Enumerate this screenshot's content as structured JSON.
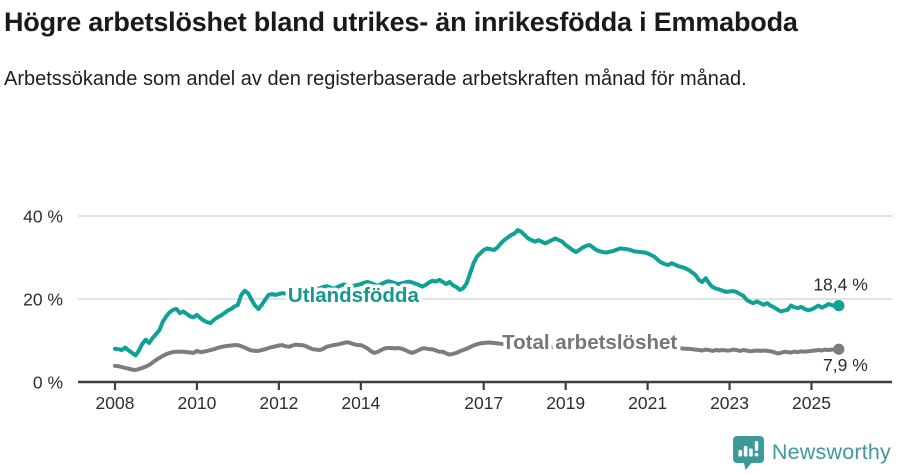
{
  "header": {
    "title": "Högre arbetslöshet bland utrikes- än inrikesfödda i Emmaboda",
    "subtitle": "Arbetssökande som andel av den registerbaserade arbetskraften månad för månad."
  },
  "chart_data": {
    "type": "line",
    "title": "Högre arbetslöshet bland utrikes- än inrikesfödda i Emmaboda",
    "subtitle": "Arbetssökande som andel av den registerbaserade arbetskraften månad för månad.",
    "x_unit": "year-month",
    "x_start_year": 2008,
    "x_points_per_year": 12,
    "x_end": "2025-09",
    "x_tick_labels": [
      "2008",
      "2010",
      "2012",
      "2014",
      "2017",
      "2019",
      "2021",
      "2023",
      "2025"
    ],
    "x_tick_years": [
      2008,
      2010,
      2012,
      2014,
      2017,
      2019,
      2021,
      2023,
      2025
    ],
    "y_ticks": [
      {
        "value": 0,
        "label": "0 %"
      },
      {
        "value": 20,
        "label": "20 %"
      },
      {
        "value": 40,
        "label": "40 %"
      }
    ],
    "ylim": [
      0,
      43
    ],
    "grid": true,
    "legend_position": "inline-labels",
    "colors": {
      "grid": "#d9d9d9",
      "axis": "#3f3f3f",
      "tick_text": "#2e2e2e",
      "value_text": "#2b2b2b"
    },
    "series": [
      {
        "name": "Utlandsfödda",
        "color": "#0fa194",
        "label_color": "#14988f",
        "end_value_label": "18,4 %",
        "end_value": 18.4,
        "label_anchor": {
          "year": 2012.22,
          "value": 19.3
        },
        "values": [
          8.0,
          7.9,
          7.7,
          8.3,
          7.6,
          7.0,
          6.4,
          7.6,
          9.2,
          10.2,
          9.4,
          10.6,
          11.5,
          12.5,
          14.5,
          15.8,
          16.8,
          17.4,
          17.6,
          16.6,
          17.0,
          16.4,
          15.8,
          15.6,
          16.2,
          15.4,
          14.8,
          14.4,
          14.2,
          15.0,
          15.6,
          16.0,
          16.6,
          17.2,
          17.6,
          18.2,
          18.6,
          21.0,
          22.0,
          21.4,
          19.8,
          18.4,
          17.6,
          18.6,
          19.8,
          21.0,
          21.2,
          21.0,
          21.2,
          21.4,
          21.3,
          21.5,
          21.6,
          21.8,
          22.0,
          22.3,
          22.1,
          21.9,
          22.2,
          22.4,
          22.6,
          22.9,
          23.1,
          22.8,
          22.5,
          22.8,
          23.2,
          23.5,
          23.3,
          23.0,
          23.2,
          23.4,
          23.6,
          23.9,
          24.1,
          23.8,
          23.5,
          23.2,
          23.6,
          24.0,
          24.3,
          24.1,
          23.8,
          23.6,
          23.8,
          24.0,
          24.2,
          24.0,
          23.7,
          23.4,
          23.0,
          23.4,
          24.0,
          24.4,
          24.2,
          24.6,
          24.1,
          23.6,
          24.1,
          23.3,
          22.9,
          22.2,
          22.6,
          23.8,
          26.2,
          28.6,
          30.2,
          31.0,
          31.8,
          32.2,
          32.0,
          31.8,
          32.4,
          33.4,
          34.2,
          34.8,
          35.4,
          35.8,
          36.6,
          36.2,
          35.4,
          34.6,
          34.2,
          33.8,
          34.2,
          33.8,
          33.4,
          33.8,
          34.2,
          34.6,
          34.2,
          33.8,
          33.0,
          32.4,
          31.8,
          31.3,
          31.8,
          32.4,
          32.8,
          33.0,
          32.4,
          31.8,
          31.5,
          31.3,
          31.2,
          31.4,
          31.6,
          31.9,
          32.2,
          32.1,
          32.0,
          31.8,
          31.5,
          31.4,
          31.3,
          31.2,
          31.0,
          30.6,
          30.2,
          29.4,
          28.8,
          28.4,
          28.2,
          28.6,
          28.3,
          27.9,
          27.7,
          27.4,
          27.0,
          26.4,
          25.8,
          24.6,
          24.1,
          25.0,
          23.8,
          22.9,
          22.5,
          22.3,
          22.0,
          21.7,
          21.8,
          21.9,
          21.7,
          21.2,
          20.8,
          19.8,
          19.3,
          19.0,
          19.4,
          19.0,
          18.6,
          19.0,
          18.4,
          18.0,
          17.5,
          17.0,
          17.2,
          17.4,
          18.4,
          18.0,
          17.8,
          18.1,
          17.6,
          17.3,
          17.5,
          17.9,
          18.4,
          17.9,
          18.3,
          18.8,
          18.5,
          18.3,
          18.4
        ]
      },
      {
        "name": "Total arbetslöshet",
        "color": "#7d7d81",
        "label_color": "#76767b",
        "end_value_label": "7,9 %",
        "end_value": 7.9,
        "label_anchor": {
          "year": 2017.45,
          "value": 8.0
        },
        "values": [
          3.9,
          3.8,
          3.6,
          3.4,
          3.2,
          3.0,
          2.9,
          3.1,
          3.4,
          3.7,
          4.1,
          4.7,
          5.3,
          5.8,
          6.3,
          6.7,
          7.0,
          7.2,
          7.3,
          7.3,
          7.3,
          7.2,
          7.1,
          7.0,
          7.5,
          7.2,
          7.3,
          7.5,
          7.7,
          7.9,
          8.2,
          8.4,
          8.6,
          8.7,
          8.8,
          8.9,
          8.9,
          8.6,
          8.3,
          7.9,
          7.6,
          7.5,
          7.5,
          7.7,
          7.9,
          8.2,
          8.4,
          8.6,
          8.8,
          8.9,
          8.6,
          8.5,
          8.8,
          9.0,
          8.9,
          8.9,
          8.6,
          8.2,
          7.9,
          7.8,
          7.7,
          8.0,
          8.5,
          8.7,
          8.9,
          9.0,
          9.2,
          9.4,
          9.6,
          9.4,
          9.1,
          8.9,
          8.9,
          8.5,
          8.1,
          7.4,
          7.0,
          7.3,
          7.7,
          8.1,
          8.2,
          8.2,
          8.1,
          8.2,
          8.0,
          7.7,
          7.3,
          7.0,
          7.3,
          7.7,
          8.1,
          8.1,
          7.9,
          7.9,
          7.6,
          7.3,
          7.3,
          6.9,
          6.6,
          6.8,
          7.0,
          7.4,
          7.7,
          8.0,
          8.4,
          8.8,
          9.1,
          9.3,
          9.4,
          9.5,
          9.5,
          9.4,
          9.3,
          9.2,
          9.1,
          9.0,
          8.9,
          8.9,
          8.8,
          8.8,
          8.7,
          8.6,
          8.5,
          8.5,
          8.6,
          8.6,
          8.5,
          8.4,
          8.4,
          8.3,
          8.3,
          8.2,
          8.3,
          8.2,
          8.2,
          8.1,
          8.1,
          8.2,
          8.2,
          8.3,
          8.3,
          8.2,
          8.3,
          8.4,
          8.5,
          8.7,
          9.0,
          9.3,
          9.4,
          9.4,
          9.3,
          9.2,
          9.2,
          9.1,
          9.0,
          9.0,
          8.9,
          8.8,
          8.8,
          8.7,
          8.6,
          8.5,
          8.4,
          8.3,
          8.2,
          8.2,
          8.1,
          8.0,
          8.0,
          7.9,
          7.8,
          7.7,
          7.6,
          7.8,
          7.7,
          7.5,
          7.7,
          7.6,
          7.7,
          7.6,
          7.6,
          7.8,
          7.7,
          7.5,
          7.7,
          7.6,
          7.4,
          7.5,
          7.6,
          7.5,
          7.6,
          7.5,
          7.4,
          7.2,
          6.9,
          7.0,
          7.3,
          7.2,
          7.1,
          7.3,
          7.2,
          7.4,
          7.3,
          7.4,
          7.5,
          7.6,
          7.7,
          7.6,
          7.8,
          7.7,
          7.8,
          7.9,
          7.9
        ]
      }
    ]
  },
  "footer": {
    "brand": "Newsworthy",
    "brand_color": "#3e999b",
    "logo_icon": "bar-chart-speech-bubble-icon"
  }
}
